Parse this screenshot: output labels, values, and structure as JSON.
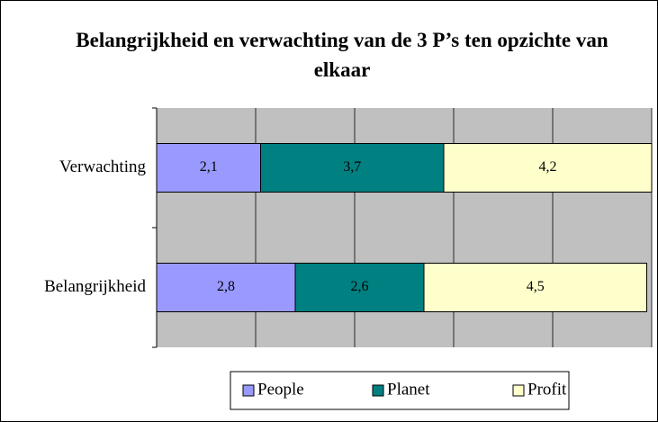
{
  "chart_data": {
    "type": "stacked_barh",
    "title": "Belangrijkheid en verwachting van de 3 P’s ten opzichte van elkaar",
    "categories": [
      "Verwachting",
      "Belangrijkheid"
    ],
    "series": [
      {
        "name": "People",
        "color": "#9999ff",
        "values": [
          2.1,
          2.8
        ],
        "value_labels": [
          "2,1",
          "2,8"
        ]
      },
      {
        "name": "Planet",
        "color": "#008080",
        "values": [
          3.7,
          2.6
        ],
        "value_labels": [
          "3,7",
          "2,6"
        ]
      },
      {
        "name": "Profit",
        "color": "#ffffcc",
        "values": [
          4.2,
          4.5
        ],
        "value_labels": [
          "4,2",
          "4,5"
        ]
      }
    ],
    "xlim": [
      0,
      10
    ],
    "xticks": [
      0,
      2,
      4,
      6,
      8,
      10
    ],
    "grid": true,
    "legend": "bottom"
  }
}
